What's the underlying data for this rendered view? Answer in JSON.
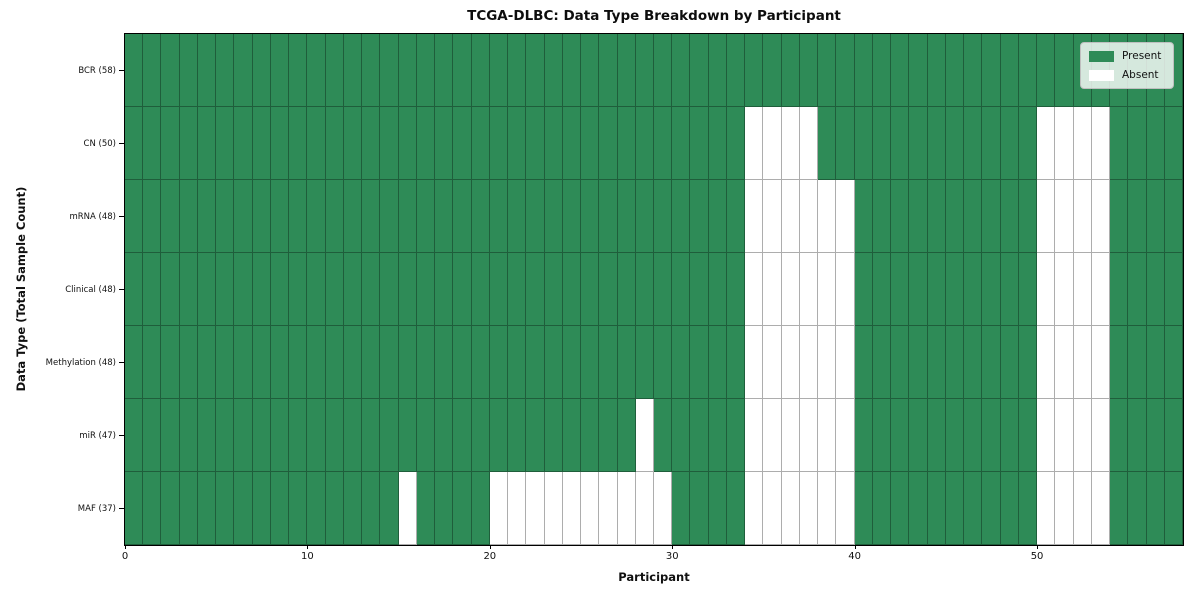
{
  "chart_data": {
    "type": "heatmap",
    "title": "TCGA-DLBC: Data Type Breakdown by Participant",
    "xlabel": "Participant",
    "ylabel": "Data Type (Total Sample Count)",
    "x_tick_values": [
      0,
      10,
      20,
      30,
      40,
      50
    ],
    "x_range": [
      0,
      58
    ],
    "n_participants": 58,
    "grid": true,
    "cell_states": {
      "present": "Present",
      "absent": "Absent"
    },
    "colors": {
      "present": "#2e8b57",
      "absent": "#ffffff",
      "grid_line": "rgba(0,0,0,0.32)",
      "border": "#000000"
    },
    "legend": {
      "position": "upper right",
      "entries": [
        {
          "label": "Present",
          "color": "#2e8b57"
        },
        {
          "label": "Absent",
          "color": "#ffffff"
        }
      ]
    },
    "rows": [
      {
        "label": "BCR (58)",
        "data_type": "BCR",
        "total_samples": 58,
        "absent_participants": []
      },
      {
        "label": "CN (50)",
        "data_type": "CN",
        "total_samples": 50,
        "absent_participants": [
          34,
          35,
          36,
          37,
          50,
          51,
          52,
          53
        ]
      },
      {
        "label": "mRNA (48)",
        "data_type": "mRNA",
        "total_samples": 48,
        "absent_participants": [
          34,
          35,
          36,
          37,
          38,
          39,
          50,
          51,
          52,
          53
        ]
      },
      {
        "label": "Clinical (48)",
        "data_type": "Clinical",
        "total_samples": 48,
        "absent_participants": [
          34,
          35,
          36,
          37,
          38,
          39,
          50,
          51,
          52,
          53
        ]
      },
      {
        "label": "Methylation (48)",
        "data_type": "Methylation",
        "total_samples": 48,
        "absent_participants": [
          34,
          35,
          36,
          37,
          38,
          39,
          50,
          51,
          52,
          53
        ]
      },
      {
        "label": "miR (47)",
        "data_type": "miR",
        "total_samples": 47,
        "absent_participants": [
          28,
          34,
          35,
          36,
          37,
          38,
          39,
          50,
          51,
          52,
          53
        ]
      },
      {
        "label": "MAF (37)",
        "data_type": "MAF",
        "total_samples": 37,
        "absent_participants": [
          15,
          20,
          21,
          22,
          23,
          24,
          25,
          26,
          27,
          28,
          29,
          34,
          35,
          36,
          37,
          38,
          39,
          50,
          51,
          52,
          53
        ]
      }
    ]
  }
}
